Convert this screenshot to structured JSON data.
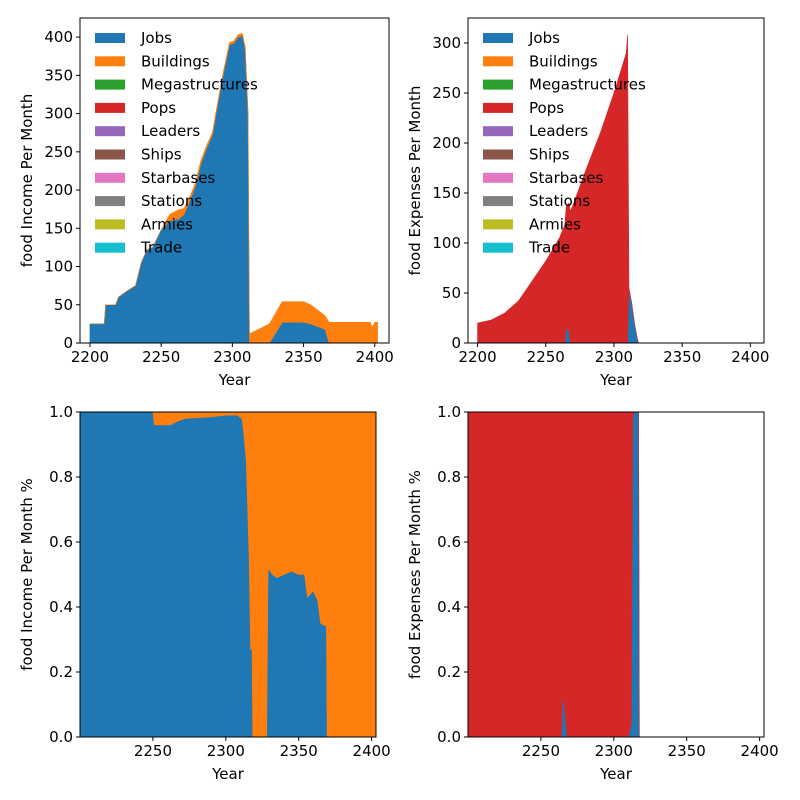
{
  "colors": {
    "Jobs": "#1f77b4",
    "Buildings": "#ff7f0e",
    "Megastructures": "#2ca02c",
    "Pops": "#d62728",
    "Leaders": "#9467bd",
    "Ships": "#8c564b",
    "Starbases": "#e377c2",
    "Stations": "#7f7f7f",
    "Armies": "#bcbd22",
    "Trade": "#17becf"
  },
  "legend_entries": [
    "Jobs",
    "Buildings",
    "Megastructures",
    "Pops",
    "Leaders",
    "Ships",
    "Starbases",
    "Stations",
    "Armies",
    "Trade"
  ],
  "chart_data": [
    {
      "id": "income",
      "type": "area",
      "stacked": true,
      "ylabel": "food Income Per Month",
      "xlabel": "Year",
      "xlim": [
        2193,
        2410
      ],
      "ylim": [
        0,
        425
      ],
      "xticks": [
        2200,
        2250,
        2300,
        2350,
        2400
      ],
      "yticks": [
        0,
        50,
        100,
        150,
        200,
        250,
        300,
        350,
        400
      ],
      "legend": "top-left",
      "grid": false,
      "series": [
        {
          "name": "Jobs",
          "points": [
            [
              2200,
              25
            ],
            [
              2210,
              25
            ],
            [
              2211,
              50
            ],
            [
              2218,
              50
            ],
            [
              2220,
              60
            ],
            [
              2226,
              68
            ],
            [
              2232,
              75
            ],
            [
              2236,
              105
            ],
            [
              2240,
              122
            ],
            [
              2244,
              125
            ],
            [
              2250,
              148
            ],
            [
              2256,
              160
            ],
            [
              2262,
              162
            ],
            [
              2266,
              168
            ],
            [
              2270,
              185
            ],
            [
              2274,
              205
            ],
            [
              2278,
              235
            ],
            [
              2282,
              255
            ],
            [
              2286,
              272
            ],
            [
              2290,
              315
            ],
            [
              2294,
              355
            ],
            [
              2298,
              390
            ],
            [
              2301,
              392
            ],
            [
              2304,
              400
            ],
            [
              2307,
              402
            ],
            [
              2309,
              385
            ],
            [
              2311,
              300
            ],
            [
              2312,
              0
            ],
            [
              2326,
              0
            ],
            [
              2326,
              25
            ],
            [
              2335,
              27
            ],
            [
              2350,
              27
            ],
            [
              2355,
              25
            ],
            [
              2362,
              20
            ],
            [
              2365,
              18
            ],
            [
              2368,
              0
            ],
            [
              2400,
              0
            ]
          ]
        },
        {
          "name": "Buildings",
          "points": [
            [
              2200,
              0
            ],
            [
              2250,
              0
            ],
            [
              2256,
              8
            ],
            [
              2262,
              12
            ],
            [
              2266,
              8
            ],
            [
              2270,
              5
            ],
            [
              2280,
              4
            ],
            [
              2290,
              3
            ],
            [
              2300,
              3
            ],
            [
              2307,
              3
            ],
            [
              2309,
              3
            ],
            [
              2311,
              3
            ],
            [
              2312,
              12
            ],
            [
              2326,
              25
            ],
            [
              2335,
              27
            ],
            [
              2350,
              27
            ],
            [
              2355,
              25
            ],
            [
              2362,
              20
            ],
            [
              2365,
              18
            ],
            [
              2368,
              27
            ],
            [
              2397,
              27
            ],
            [
              2398,
              20
            ],
            [
              2400,
              27
            ],
            [
              2402,
              27
            ]
          ]
        },
        {
          "name": "Megastructures",
          "points": []
        },
        {
          "name": "Pops",
          "points": []
        },
        {
          "name": "Leaders",
          "points": []
        },
        {
          "name": "Ships",
          "points": []
        },
        {
          "name": "Starbases",
          "points": []
        },
        {
          "name": "Stations",
          "points": []
        },
        {
          "name": "Armies",
          "points": []
        },
        {
          "name": "Trade",
          "points": []
        }
      ]
    },
    {
      "id": "expenses",
      "type": "area",
      "stacked": true,
      "ylabel": "food  Expenses Per Month",
      "xlabel": "Year",
      "xlim": [
        2193,
        2410
      ],
      "ylim": [
        0,
        325
      ],
      "xticks": [
        2200,
        2250,
        2300,
        2350,
        2400
      ],
      "yticks": [
        0,
        50,
        100,
        150,
        200,
        250,
        300
      ],
      "legend": "top-left",
      "grid": false,
      "series": [
        {
          "name": "Jobs",
          "points": [
            [
              2200,
              0
            ],
            [
              2264,
              0
            ],
            [
              2265,
              15
            ],
            [
              2267,
              12
            ],
            [
              2268,
              0
            ],
            [
              2310,
              0
            ],
            [
              2311,
              55
            ],
            [
              2313,
              40
            ],
            [
              2315,
              20
            ],
            [
              2317,
              5
            ],
            [
              2318,
              0
            ],
            [
              2410,
              0
            ]
          ]
        },
        {
          "name": "Buildings",
          "points": []
        },
        {
          "name": "Megastructures",
          "points": []
        },
        {
          "name": "Pops",
          "points": [
            [
              2200,
              20
            ],
            [
              2210,
              23
            ],
            [
              2220,
              30
            ],
            [
              2230,
              42
            ],
            [
              2240,
              62
            ],
            [
              2250,
              82
            ],
            [
              2260,
              105
            ],
            [
              2270,
              138
            ],
            [
              2280,
              175
            ],
            [
              2290,
              210
            ],
            [
              2300,
              250
            ],
            [
              2305,
              272
            ],
            [
              2309,
              290
            ],
            [
              2310,
              308
            ],
            [
              2311,
              0
            ],
            [
              2410,
              0
            ]
          ]
        },
        {
          "name": "Leaders",
          "points": []
        },
        {
          "name": "Ships",
          "points": []
        },
        {
          "name": "Starbases",
          "points": []
        },
        {
          "name": "Stations",
          "points": []
        },
        {
          "name": "Armies",
          "points": []
        },
        {
          "name": "Trade",
          "points": []
        }
      ]
    },
    {
      "id": "income_pct",
      "type": "area",
      "stacked": true,
      "ylabel": "food  Income Per Month %",
      "xlabel": "Year",
      "xlim": [
        2200,
        2403
      ],
      "ylim": [
        0,
        1
      ],
      "xticks": [
        2250,
        2300,
        2350,
        2400
      ],
      "yticks": [
        0.0,
        0.2,
        0.4,
        0.6,
        0.8,
        1.0
      ],
      "grid": false,
      "series": [
        {
          "name": "Jobs",
          "points": [
            [
              2200,
              1.0
            ],
            [
              2250,
              1.0
            ],
            [
              2251,
              0.96
            ],
            [
              2262,
              0.96
            ],
            [
              2266,
              0.97
            ],
            [
              2272,
              0.98
            ],
            [
              2290,
              0.985
            ],
            [
              2300,
              0.99
            ],
            [
              2308,
              0.99
            ],
            [
              2311,
              0.98
            ],
            [
              2312,
              0.95
            ],
            [
              2314,
              0.85
            ],
            [
              2316,
              0.55
            ],
            [
              2317,
              0.27
            ],
            [
              2318,
              0.27
            ],
            [
              2318.5,
              0
            ],
            [
              2328,
              0
            ],
            [
              2329,
              0.52
            ],
            [
              2332,
              0.5
            ],
            [
              2335,
              0.49
            ],
            [
              2340,
              0.5
            ],
            [
              2345,
              0.51
            ],
            [
              2350,
              0.5
            ],
            [
              2354,
              0.5
            ],
            [
              2356,
              0.43
            ],
            [
              2360,
              0.45
            ],
            [
              2363,
              0.42
            ],
            [
              2365,
              0.35
            ],
            [
              2369,
              0.34
            ],
            [
              2369.5,
              0
            ],
            [
              2403,
              0
            ]
          ]
        },
        {
          "name": "Buildings",
          "points": [
            [
              2200,
              0
            ],
            [
              2250,
              0
            ],
            [
              2251,
              0.04
            ],
            [
              2262,
              0.04
            ],
            [
              2266,
              0.03
            ],
            [
              2272,
              0.02
            ],
            [
              2290,
              0.015
            ],
            [
              2300,
              0.01
            ],
            [
              2308,
              0.01
            ],
            [
              2311,
              0.02
            ],
            [
              2312,
              0.05
            ],
            [
              2314,
              0.15
            ],
            [
              2316,
              0.45
            ],
            [
              2317,
              0.73
            ],
            [
              2318,
              0.73
            ],
            [
              2318.5,
              1.0
            ],
            [
              2328,
              1.0
            ],
            [
              2329,
              0.48
            ],
            [
              2332,
              0.5
            ],
            [
              2335,
              0.51
            ],
            [
              2340,
              0.5
            ],
            [
              2345,
              0.49
            ],
            [
              2350,
              0.5
            ],
            [
              2354,
              0.5
            ],
            [
              2356,
              0.57
            ],
            [
              2360,
              0.55
            ],
            [
              2363,
              0.58
            ],
            [
              2365,
              0.65
            ],
            [
              2369,
              0.66
            ],
            [
              2369.5,
              1.0
            ],
            [
              2403,
              1.0
            ]
          ]
        },
        {
          "name": "Megastructures",
          "points": []
        },
        {
          "name": "Pops",
          "points": []
        },
        {
          "name": "Leaders",
          "points": []
        },
        {
          "name": "Ships",
          "points": []
        },
        {
          "name": "Starbases",
          "points": []
        },
        {
          "name": "Stations",
          "points": []
        },
        {
          "name": "Armies",
          "points": []
        },
        {
          "name": "Trade",
          "points": []
        }
      ]
    },
    {
      "id": "expenses_pct",
      "type": "area",
      "stacked": true,
      "ylabel": "food  Expenses Per Month %",
      "xlabel": "Year",
      "xlim": [
        2200,
        2403
      ],
      "ylim": [
        0,
        1
      ],
      "xticks": [
        2250,
        2300,
        2350,
        2400
      ],
      "yticks": [
        0.0,
        0.2,
        0.4,
        0.6,
        0.8,
        1.0
      ],
      "grid": false,
      "series": [
        {
          "name": "Jobs",
          "points": [
            [
              2200,
              0
            ],
            [
              2264,
              0
            ],
            [
              2265,
              0.13
            ],
            [
              2266,
              0.1
            ],
            [
              2267,
              0.05
            ],
            [
              2268,
              0
            ],
            [
              2310,
              0
            ],
            [
              2311,
              0.02
            ],
            [
              2312,
              0.04
            ],
            [
              2313,
              0.98
            ],
            [
              2314,
              1.0
            ],
            [
              2317,
              1.0
            ],
            [
              2317.5,
              0
            ],
            [
              2403,
              0
            ]
          ]
        },
        {
          "name": "Buildings",
          "points": []
        },
        {
          "name": "Megastructures",
          "points": []
        },
        {
          "name": "Pops",
          "points": [
            [
              2200,
              1.0
            ],
            [
              2264,
              1.0
            ],
            [
              2265,
              0.87
            ],
            [
              2266,
              0.9
            ],
            [
              2267,
              0.95
            ],
            [
              2268,
              1.0
            ],
            [
              2310,
              1.0
            ],
            [
              2311,
              0.98
            ],
            [
              2312,
              0.96
            ],
            [
              2313,
              0.02
            ],
            [
              2314,
              0
            ],
            [
              2403,
              0
            ]
          ]
        },
        {
          "name": "Leaders",
          "points": []
        },
        {
          "name": "Ships",
          "points": []
        },
        {
          "name": "Starbases",
          "points": []
        },
        {
          "name": "Stations",
          "points": []
        },
        {
          "name": "Armies",
          "points": []
        },
        {
          "name": "Trade",
          "points": []
        }
      ]
    }
  ]
}
